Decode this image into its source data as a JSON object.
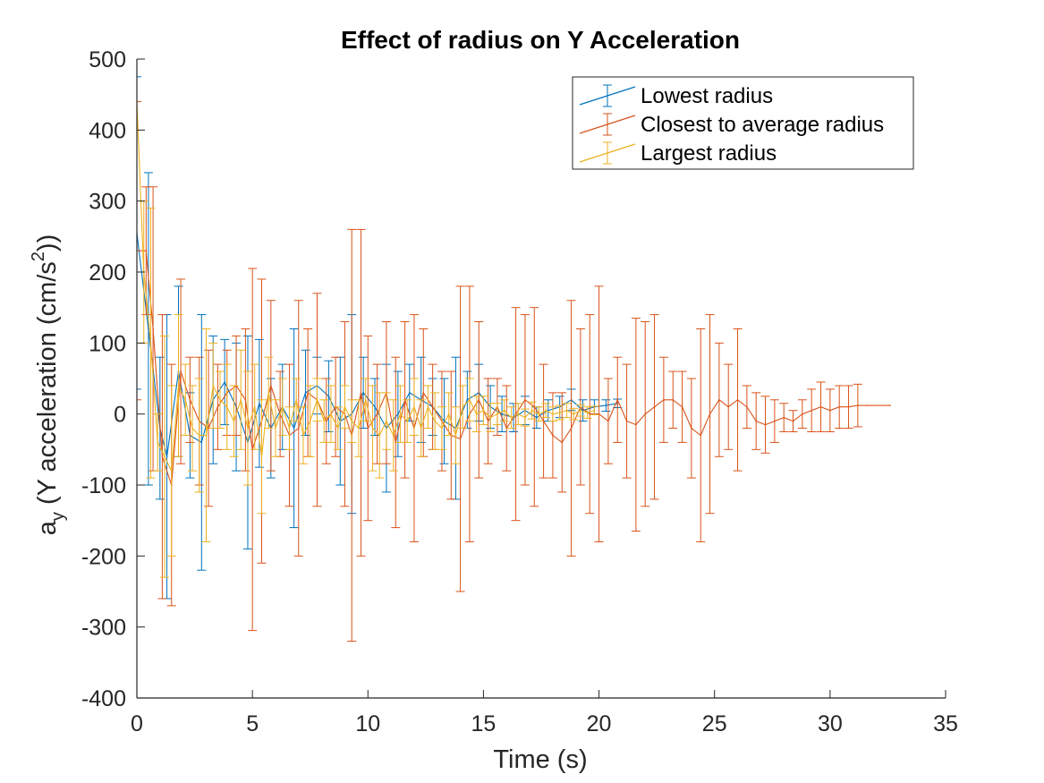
{
  "chart_data": {
    "type": "line",
    "title": "Effect of radius on  Y Acceleration",
    "xlabel": "Time (s)",
    "ylabel": {
      "main": "a",
      "sub": "y",
      "text": " (Y acceleration (cm/s",
      "sup": "2",
      "end": "))"
    },
    "xlim": [
      0,
      35
    ],
    "ylim": [
      -400,
      500
    ],
    "xticks": [
      0,
      5,
      10,
      15,
      20,
      25,
      30,
      35
    ],
    "yticks": [
      500,
      400,
      300,
      200,
      100,
      0,
      -100,
      -200,
      -300,
      -400
    ],
    "xtick_labels": [
      "0",
      "5",
      "10",
      "15",
      "20",
      "25",
      "30",
      "35"
    ],
    "ytick_labels": [
      "500",
      "400",
      "300",
      "200",
      "100",
      "0",
      "-100",
      "-200",
      "-300",
      "-400"
    ],
    "legend_position": "top-right",
    "grid": false,
    "series": [
      {
        "name": "Lowest radius",
        "color": "#0072BD",
        "points": [
          {
            "x": 0.0,
            "y": 255,
            "err": 220
          },
          {
            "x": 0.5,
            "y": 120,
            "err": 220
          },
          {
            "x": 1.0,
            "y": -20,
            "err": 100
          },
          {
            "x": 1.3,
            "y": -60,
            "err": 200
          },
          {
            "x": 1.8,
            "y": 60,
            "err": 120
          },
          {
            "x": 2.3,
            "y": -30,
            "err": 60
          },
          {
            "x": 2.8,
            "y": -40,
            "err": 180
          },
          {
            "x": 3.3,
            "y": 20,
            "err": 90
          },
          {
            "x": 3.8,
            "y": 45,
            "err": 60
          },
          {
            "x": 4.3,
            "y": 10,
            "err": 90
          },
          {
            "x": 4.8,
            "y": -40,
            "err": 150
          },
          {
            "x": 5.3,
            "y": 15,
            "err": 90
          },
          {
            "x": 5.8,
            "y": -20,
            "err": 70
          },
          {
            "x": 6.3,
            "y": 10,
            "err": 60
          },
          {
            "x": 6.8,
            "y": -20,
            "err": 140
          },
          {
            "x": 7.3,
            "y": 30,
            "err": 60
          },
          {
            "x": 7.8,
            "y": 40,
            "err": 40
          },
          {
            "x": 8.3,
            "y": 25,
            "err": 50
          },
          {
            "x": 8.8,
            "y": -10,
            "err": 90
          },
          {
            "x": 9.3,
            "y": 0,
            "err": 140
          },
          {
            "x": 9.8,
            "y": 30,
            "err": 50
          },
          {
            "x": 10.3,
            "y": 10,
            "err": 40
          },
          {
            "x": 10.8,
            "y": -20,
            "err": 90
          },
          {
            "x": 11.3,
            "y": 0,
            "err": 60
          },
          {
            "x": 11.8,
            "y": 30,
            "err": 40
          },
          {
            "x": 12.3,
            "y": 20,
            "err": 60
          },
          {
            "x": 12.8,
            "y": 10,
            "err": 40
          },
          {
            "x": 13.3,
            "y": -10,
            "err": 60
          },
          {
            "x": 13.8,
            "y": -20,
            "err": 100
          },
          {
            "x": 14.3,
            "y": 20,
            "err": 40
          },
          {
            "x": 14.8,
            "y": 30,
            "err": 40
          },
          {
            "x": 15.3,
            "y": 10,
            "err": 30
          },
          {
            "x": 15.8,
            "y": 0,
            "err": 25
          },
          {
            "x": 16.3,
            "y": -5,
            "err": 20
          },
          {
            "x": 16.8,
            "y": 5,
            "err": 20
          },
          {
            "x": 17.3,
            "y": -5,
            "err": 15
          },
          {
            "x": 17.8,
            "y": 5,
            "err": 15
          },
          {
            "x": 18.3,
            "y": 10,
            "err": 15
          },
          {
            "x": 18.8,
            "y": 20,
            "err": 15
          },
          {
            "x": 19.3,
            "y": 5,
            "err": 15
          },
          {
            "x": 19.8,
            "y": 10,
            "err": 10
          },
          {
            "x": 20.3,
            "y": 12,
            "err": 8
          },
          {
            "x": 20.8,
            "y": 15,
            "err": 6
          }
        ]
      },
      {
        "name": "Closest to average radius",
        "color": "#D95319",
        "points": [
          {
            "x": 0.0,
            "y": 230,
            "err": 210
          },
          {
            "x": 0.4,
            "y": 230,
            "err": 90
          },
          {
            "x": 0.7,
            "y": 120,
            "err": 200
          },
          {
            "x": 1.1,
            "y": -60,
            "err": 200
          },
          {
            "x": 1.5,
            "y": -100,
            "err": 170
          },
          {
            "x": 1.9,
            "y": 60,
            "err": 130
          },
          {
            "x": 2.3,
            "y": 20,
            "err": 60
          },
          {
            "x": 2.7,
            "y": -10,
            "err": 90
          },
          {
            "x": 3.1,
            "y": -20,
            "err": 110
          },
          {
            "x": 3.5,
            "y": 10,
            "err": 60
          },
          {
            "x": 3.9,
            "y": 30,
            "err": 60
          },
          {
            "x": 4.3,
            "y": 40,
            "err": 70
          },
          {
            "x": 4.7,
            "y": 20,
            "err": 100
          },
          {
            "x": 5.0,
            "y": -50,
            "err": 255
          },
          {
            "x": 5.4,
            "y": -10,
            "err": 200
          },
          {
            "x": 5.8,
            "y": 40,
            "err": 120
          },
          {
            "x": 6.2,
            "y": 0,
            "err": 60
          },
          {
            "x": 6.6,
            "y": -30,
            "err": 100
          },
          {
            "x": 7.0,
            "y": -20,
            "err": 180
          },
          {
            "x": 7.4,
            "y": 30,
            "err": 90
          },
          {
            "x": 7.8,
            "y": 20,
            "err": 150
          },
          {
            "x": 8.2,
            "y": -10,
            "err": 60
          },
          {
            "x": 8.6,
            "y": 10,
            "err": 70
          },
          {
            "x": 9.0,
            "y": 0,
            "err": 130
          },
          {
            "x": 9.3,
            "y": -30,
            "err": 290
          },
          {
            "x": 9.7,
            "y": 30,
            "err": 230
          },
          {
            "x": 10.0,
            "y": -20,
            "err": 130
          },
          {
            "x": 10.4,
            "y": 0,
            "err": 70
          },
          {
            "x": 10.8,
            "y": 30,
            "err": 100
          },
          {
            "x": 11.2,
            "y": -40,
            "err": 120
          },
          {
            "x": 11.6,
            "y": 20,
            "err": 110
          },
          {
            "x": 12.0,
            "y": -20,
            "err": 160
          },
          {
            "x": 12.4,
            "y": 30,
            "err": 90
          },
          {
            "x": 12.8,
            "y": 10,
            "err": 60
          },
          {
            "x": 13.2,
            "y": -10,
            "err": 70
          },
          {
            "x": 13.6,
            "y": -30,
            "err": 90
          },
          {
            "x": 14.0,
            "y": -35,
            "err": 215
          },
          {
            "x": 14.4,
            "y": 0,
            "err": 180
          },
          {
            "x": 14.8,
            "y": 20,
            "err": 110
          },
          {
            "x": 15.2,
            "y": -10,
            "err": 60
          },
          {
            "x": 15.6,
            "y": 10,
            "err": 40
          },
          {
            "x": 16.0,
            "y": -20,
            "err": 60
          },
          {
            "x": 16.4,
            "y": 0,
            "err": 150
          },
          {
            "x": 16.8,
            "y": 20,
            "err": 120
          },
          {
            "x": 17.2,
            "y": 10,
            "err": 140
          },
          {
            "x": 17.6,
            "y": -10,
            "err": 80
          },
          {
            "x": 18.0,
            "y": -30,
            "err": 60
          },
          {
            "x": 18.4,
            "y": -40,
            "err": 70
          },
          {
            "x": 18.8,
            "y": -20,
            "err": 180
          },
          {
            "x": 19.2,
            "y": 10,
            "err": 110
          },
          {
            "x": 19.6,
            "y": 0,
            "err": 140
          },
          {
            "x": 20.0,
            "y": 0,
            "err": 180
          },
          {
            "x": 20.4,
            "y": -10,
            "err": 60
          },
          {
            "x": 20.8,
            "y": 20,
            "err": 60
          },
          {
            "x": 21.2,
            "y": -10,
            "err": 80
          },
          {
            "x": 21.6,
            "y": -15,
            "err": 150
          },
          {
            "x": 22.0,
            "y": 0,
            "err": 130
          },
          {
            "x": 22.4,
            "y": 10,
            "err": 130
          },
          {
            "x": 22.8,
            "y": 20,
            "err": 60
          },
          {
            "x": 23.2,
            "y": 20,
            "err": 40
          },
          {
            "x": 23.6,
            "y": 10,
            "err": 50
          },
          {
            "x": 24.0,
            "y": -20,
            "err": 70
          },
          {
            "x": 24.4,
            "y": -30,
            "err": 150
          },
          {
            "x": 24.8,
            "y": 0,
            "err": 140
          },
          {
            "x": 25.2,
            "y": 20,
            "err": 80
          },
          {
            "x": 25.6,
            "y": 10,
            "err": 60
          },
          {
            "x": 26.0,
            "y": 20,
            "err": 100
          },
          {
            "x": 26.4,
            "y": 10,
            "err": 30
          },
          {
            "x": 26.8,
            "y": -10,
            "err": 40
          },
          {
            "x": 27.2,
            "y": -15,
            "err": 40
          },
          {
            "x": 27.6,
            "y": -10,
            "err": 30
          },
          {
            "x": 28.0,
            "y": -5,
            "err": 20
          },
          {
            "x": 28.4,
            "y": -10,
            "err": 15
          },
          {
            "x": 28.8,
            "y": 0,
            "err": 20
          },
          {
            "x": 29.2,
            "y": 5,
            "err": 30
          },
          {
            "x": 29.6,
            "y": 10,
            "err": 35
          },
          {
            "x": 30.0,
            "y": 5,
            "err": 30
          },
          {
            "x": 30.4,
            "y": 10,
            "err": 30
          },
          {
            "x": 30.8,
            "y": 10,
            "err": 30
          },
          {
            "x": 31.2,
            "y": 12,
            "err": 30
          },
          {
            "x": 31.6,
            "y": 12,
            "err": 0
          },
          {
            "x": 32.6,
            "y": 12,
            "err": 0
          }
        ]
      },
      {
        "name": "Largest radius",
        "color": "#EDB120",
        "points": [
          {
            "x": 0.0,
            "y": 440,
            "err": 0
          },
          {
            "x": 0.3,
            "y": 200,
            "err": 100
          },
          {
            "x": 0.6,
            "y": 100,
            "err": 190
          },
          {
            "x": 0.9,
            "y": -40,
            "err": 40
          },
          {
            "x": 1.2,
            "y": -60,
            "err": 170
          },
          {
            "x": 1.5,
            "y": -80,
            "err": 120
          },
          {
            "x": 1.8,
            "y": 40,
            "err": 100
          },
          {
            "x": 2.1,
            "y": 20,
            "err": 50
          },
          {
            "x": 2.4,
            "y": -20,
            "err": 60
          },
          {
            "x": 2.7,
            "y": -30,
            "err": 80
          },
          {
            "x": 3.0,
            "y": -30,
            "err": 150
          },
          {
            "x": 3.3,
            "y": 40,
            "err": 60
          },
          {
            "x": 3.6,
            "y": 20,
            "err": 40
          },
          {
            "x": 3.9,
            "y": 10,
            "err": 60
          },
          {
            "x": 4.2,
            "y": -10,
            "err": 50
          },
          {
            "x": 4.5,
            "y": 20,
            "err": 70
          },
          {
            "x": 4.8,
            "y": -20,
            "err": 80
          },
          {
            "x": 5.1,
            "y": 10,
            "err": 60
          },
          {
            "x": 5.4,
            "y": -60,
            "err": 80
          },
          {
            "x": 5.7,
            "y": 30,
            "err": 50
          },
          {
            "x": 6.0,
            "y": -20,
            "err": 40
          },
          {
            "x": 6.3,
            "y": 10,
            "err": 40
          },
          {
            "x": 6.6,
            "y": -20,
            "err": 30
          },
          {
            "x": 6.9,
            "y": 20,
            "err": 30
          },
          {
            "x": 7.2,
            "y": -30,
            "err": 40
          },
          {
            "x": 7.5,
            "y": -10,
            "err": 50
          },
          {
            "x": 7.8,
            "y": 20,
            "err": 30
          },
          {
            "x": 8.1,
            "y": -10,
            "err": 30
          },
          {
            "x": 8.4,
            "y": 0,
            "err": 40
          },
          {
            "x": 8.7,
            "y": -20,
            "err": 30
          },
          {
            "x": 9.0,
            "y": 10,
            "err": 30
          },
          {
            "x": 9.3,
            "y": -10,
            "err": 30
          },
          {
            "x": 9.6,
            "y": -20,
            "err": 40
          },
          {
            "x": 9.9,
            "y": 20,
            "err": 30
          },
          {
            "x": 10.2,
            "y": -20,
            "err": 60
          },
          {
            "x": 10.5,
            "y": -30,
            "err": 60
          },
          {
            "x": 10.8,
            "y": -10,
            "err": 40
          },
          {
            "x": 11.1,
            "y": -30,
            "err": 50
          },
          {
            "x": 11.4,
            "y": 0,
            "err": 40
          },
          {
            "x": 11.7,
            "y": -10,
            "err": 30
          },
          {
            "x": 12.0,
            "y": 10,
            "err": 40
          },
          {
            "x": 12.3,
            "y": -20,
            "err": 40
          },
          {
            "x": 12.6,
            "y": 10,
            "err": 30
          },
          {
            "x": 12.9,
            "y": -10,
            "err": 40
          },
          {
            "x": 13.2,
            "y": -20,
            "err": 30
          },
          {
            "x": 13.5,
            "y": 0,
            "err": 30
          },
          {
            "x": 13.8,
            "y": -30,
            "err": 40
          },
          {
            "x": 14.1,
            "y": 10,
            "err": 30
          },
          {
            "x": 14.4,
            "y": 20,
            "err": 30
          },
          {
            "x": 14.7,
            "y": 0,
            "err": 25
          },
          {
            "x": 15.0,
            "y": 5,
            "err": 20
          },
          {
            "x": 15.3,
            "y": -5,
            "err": 20
          },
          {
            "x": 15.6,
            "y": 0,
            "err": 15
          },
          {
            "x": 15.9,
            "y": 5,
            "err": 15
          },
          {
            "x": 16.2,
            "y": -5,
            "err": 15
          },
          {
            "x": 16.5,
            "y": 0,
            "err": 15
          },
          {
            "x": 16.8,
            "y": -5,
            "err": 12
          },
          {
            "x": 17.1,
            "y": 5,
            "err": 12
          },
          {
            "x": 17.4,
            "y": 0,
            "err": 10
          },
          {
            "x": 17.7,
            "y": 5,
            "err": 10
          },
          {
            "x": 18.0,
            "y": 0,
            "err": 10
          },
          {
            "x": 18.3,
            "y": 2,
            "err": 10
          },
          {
            "x": 18.6,
            "y": 5,
            "err": 10
          },
          {
            "x": 18.9,
            "y": 0,
            "err": 8
          },
          {
            "x": 19.2,
            "y": 5,
            "err": 8
          },
          {
            "x": 19.5,
            "y": 2,
            "err": 8
          },
          {
            "x": 19.8,
            "y": 5,
            "err": 6
          }
        ]
      }
    ]
  }
}
